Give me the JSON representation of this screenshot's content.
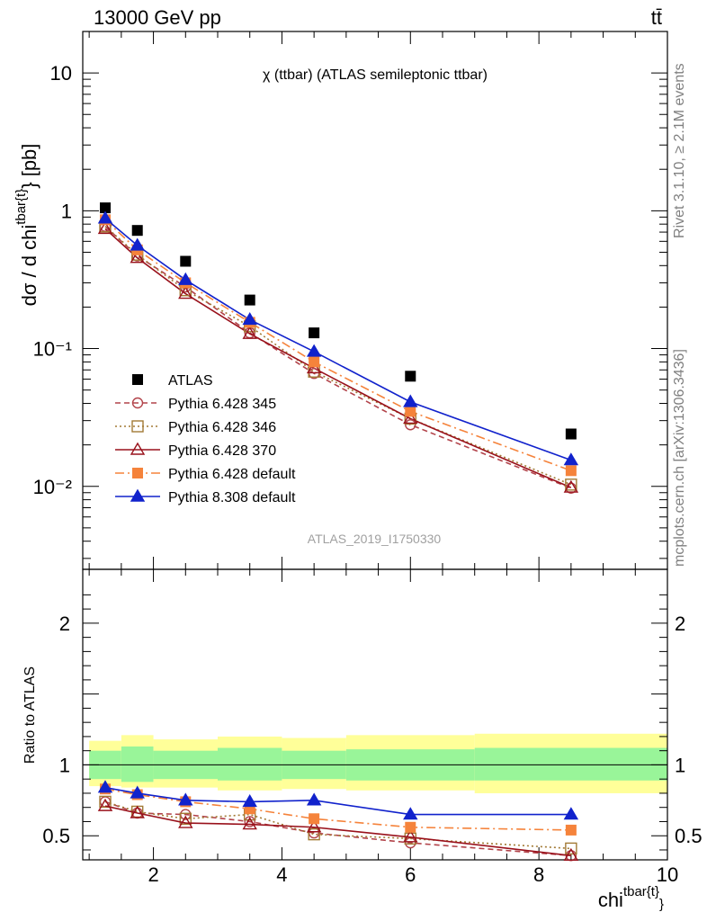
{
  "header": {
    "left": "13000 GeV pp",
    "right": "tt̄"
  },
  "side_labels": {
    "rivet": "Rivet 3.1.10, ≥ 2.1M events",
    "mcplots": "mcplots.cern.ch [arXiv:1306.3436]"
  },
  "analysis_id": "ATLAS_2019_I1750330",
  "colors": {
    "atlas": "#000000",
    "p345": "#b2434a",
    "p346": "#a27a35",
    "p370": "#99111b",
    "p6def": "#f5833b",
    "p8def": "#1122cc",
    "band_inner": "#99f599",
    "band_outer": "#ffff99"
  },
  "chart_data": [
    {
      "type": "line",
      "title": "χ (ttbar) (ATLAS semileptonic ttbar)",
      "ylabel": "dσ / d chi^{tbar{t}} [pb]",
      "yscale": "log",
      "xlim": [
        0.9,
        10
      ],
      "ylim": [
        0.0025,
        20
      ],
      "ytick_labels": [
        "10",
        "1",
        "10⁻¹",
        "10⁻²"
      ],
      "legend_position": "lower-left",
      "x": [
        1.25,
        1.75,
        2.5,
        3.5,
        4.5,
        6,
        8.5
      ],
      "x_edges": [
        1,
        1.5,
        2,
        3,
        4,
        5,
        7,
        10
      ],
      "series": [
        {
          "name": "ATLAS",
          "key": "atlas",
          "style": "square-filled",
          "values": [
            1.05,
            0.72,
            0.43,
            0.225,
            0.13,
            0.063,
            0.024
          ]
        },
        {
          "name": "Pythia 6.428 345",
          "key": "p345",
          "style": "circle-open-dashed",
          "values": [
            0.77,
            0.47,
            0.28,
            0.13,
            0.066,
            0.028,
            0.0097
          ]
        },
        {
          "name": "Pythia 6.428 346",
          "key": "p346",
          "style": "square-open-dotted",
          "values": [
            0.77,
            0.48,
            0.265,
            0.145,
            0.068,
            0.031,
            0.0103
          ]
        },
        {
          "name": "Pythia 6.428 370",
          "key": "p370",
          "style": "triangle-open-solid",
          "values": [
            0.74,
            0.455,
            0.25,
            0.128,
            0.072,
            0.031,
            0.0098
          ]
        },
        {
          "name": "Pythia 6.428 default",
          "key": "p6def",
          "style": "square-filled-dashdot",
          "values": [
            0.86,
            0.52,
            0.3,
            0.155,
            0.08,
            0.035,
            0.013
          ]
        },
        {
          "name": "Pythia 8.308 default",
          "key": "p8def",
          "style": "triangle-filled-solid",
          "values": [
            0.88,
            0.56,
            0.315,
            0.162,
            0.095,
            0.041,
            0.0155
          ]
        }
      ]
    },
    {
      "type": "line",
      "ylabel": "Ratio to ATLAS",
      "xlabel": "chi^{tbar{t}}",
      "xlim": [
        0.9,
        10
      ],
      "ylim": [
        0.33,
        2.38
      ],
      "xtick_labels": [
        "2",
        "4",
        "6",
        "8",
        "10"
      ],
      "ytick_labels": [
        "2",
        "1",
        "0.5"
      ],
      "x": [
        1.25,
        1.75,
        2.5,
        3.5,
        4.5,
        6,
        8.5
      ],
      "band_edges": [
        1,
        1.5,
        2,
        3,
        4,
        5,
        7,
        10
      ],
      "band_inner": [
        [
          0.9,
          1.1
        ],
        [
          0.88,
          1.13
        ],
        [
          0.9,
          1.1
        ],
        [
          0.89,
          1.12
        ],
        [
          0.9,
          1.1
        ],
        [
          0.89,
          1.11
        ],
        [
          0.89,
          1.12
        ]
      ],
      "band_outer": [
        [
          0.85,
          1.17
        ],
        [
          0.84,
          1.21
        ],
        [
          0.84,
          1.18
        ],
        [
          0.82,
          1.2
        ],
        [
          0.83,
          1.19
        ],
        [
          0.82,
          1.21
        ],
        [
          0.8,
          1.22
        ]
      ],
      "series": [
        {
          "name": "Pythia 6.428 345",
          "key": "p345",
          "values": [
            0.74,
            0.66,
            0.65,
            0.6,
            0.52,
            0.45,
            0.36
          ]
        },
        {
          "name": "Pythia 6.428 346",
          "key": "p346",
          "values": [
            0.74,
            0.67,
            0.62,
            0.65,
            0.51,
            0.48,
            0.41
          ]
        },
        {
          "name": "Pythia 6.428 370",
          "key": "p370",
          "values": [
            0.71,
            0.66,
            0.59,
            0.58,
            0.56,
            0.49,
            0.36
          ]
        },
        {
          "name": "Pythia 6.428 default",
          "key": "p6def",
          "values": [
            0.83,
            0.79,
            0.74,
            0.69,
            0.62,
            0.56,
            0.54
          ]
        },
        {
          "name": "Pythia 8.308 default",
          "key": "p8def",
          "values": [
            0.84,
            0.8,
            0.75,
            0.74,
            0.75,
            0.65,
            0.65
          ]
        }
      ]
    }
  ]
}
